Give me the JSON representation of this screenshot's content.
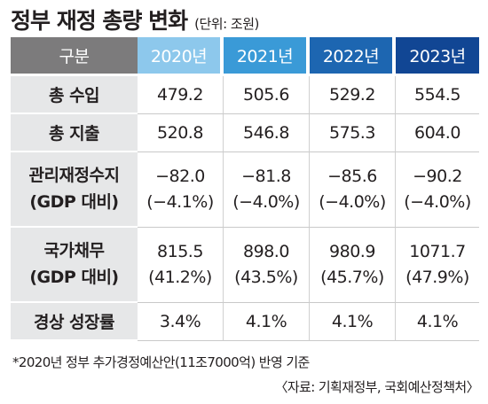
{
  "title": "정부 재정 총량 변화",
  "unit": "(단위: 조원)",
  "headers": [
    "구분",
    "2020년",
    "2021년",
    "2022년",
    "2023년"
  ],
  "rows": [
    {
      "label": [
        "총 수입"
      ],
      "values": [
        [
          "479.2"
        ],
        [
          "505.6"
        ],
        [
          "529.2"
        ],
        [
          "554.5"
        ]
      ]
    },
    {
      "label": [
        "총 지출"
      ],
      "values": [
        [
          "520.8"
        ],
        [
          "546.8"
        ],
        [
          "575.3"
        ],
        [
          "604.0"
        ]
      ]
    },
    {
      "label": [
        "관리재정수지",
        "(GDP 대비)"
      ],
      "values": [
        [
          "−82.0",
          "(−4.1%)"
        ],
        [
          "−81.8",
          "(−4.0%)"
        ],
        [
          "−85.6",
          "(−4.0%)"
        ],
        [
          "−90.2",
          "(−4.0%)"
        ]
      ]
    },
    {
      "label": [
        "국가채무",
        "(GDP 대비)"
      ],
      "values": [
        [
          "815.5",
          "(41.2%)"
        ],
        [
          "898.0",
          "(43.5%)"
        ],
        [
          "980.9",
          "(45.7%)"
        ],
        [
          "1071.7",
          "(47.9%)"
        ]
      ]
    },
    {
      "label": [
        "경상 성장률"
      ],
      "values": [
        [
          "3.4%"
        ],
        [
          "4.1%"
        ],
        [
          "4.1%"
        ],
        [
          "4.1%"
        ]
      ]
    }
  ],
  "footnote": "*2020년 정부 추가경정예산안(11조7000억) 반영 기준",
  "source": "〈자료: 기획재정부, 국회예산정책처〉",
  "colors": {
    "header_gray": "#7c7b7c",
    "header_2020": "#8dc8ec",
    "header_2021": "#3a9ad7",
    "header_2022": "#1d66b1",
    "header_2023": "#114694",
    "label_bg": "#e6e7e8"
  }
}
